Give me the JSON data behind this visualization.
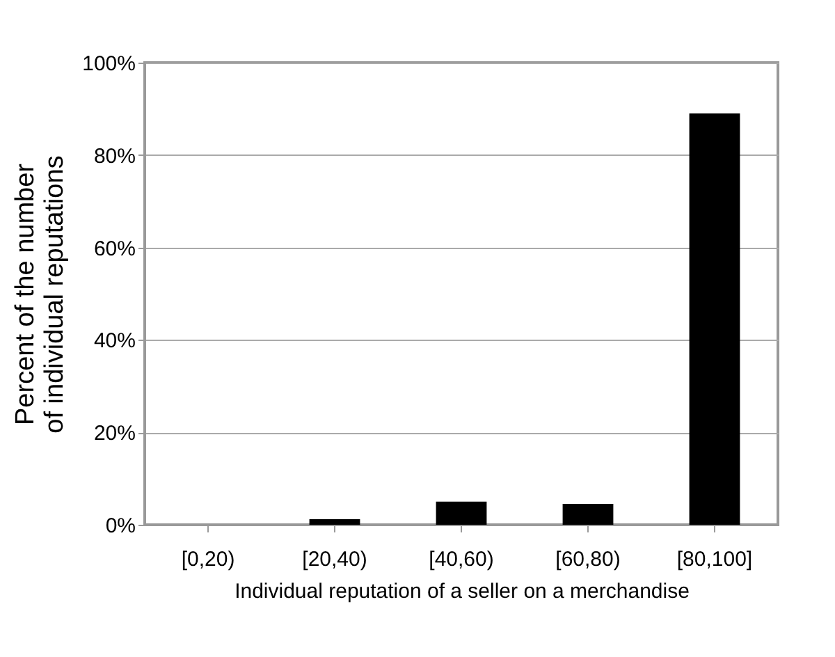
{
  "chart_data": {
    "type": "bar",
    "categories": [
      "[0,20)",
      "[20,40)",
      "[40,60)",
      "[60,80)",
      "[80,100]"
    ],
    "values": [
      0,
      1.2,
      5,
      4.5,
      89
    ],
    "color": "#000000",
    "xlabel": "Individual reputation of a seller on a merchandise",
    "ylabel": "Percent of the number\nof individual reputations",
    "ylim": [
      0,
      100
    ],
    "yticks": [
      {
        "value": 0,
        "label": "0%"
      },
      {
        "value": 20,
        "label": "20%"
      },
      {
        "value": 40,
        "label": "40%"
      },
      {
        "value": 60,
        "label": "60%"
      },
      {
        "value": 80,
        "label": "80%"
      },
      {
        "value": 100,
        "label": "100%"
      }
    ],
    "grid": "y"
  }
}
